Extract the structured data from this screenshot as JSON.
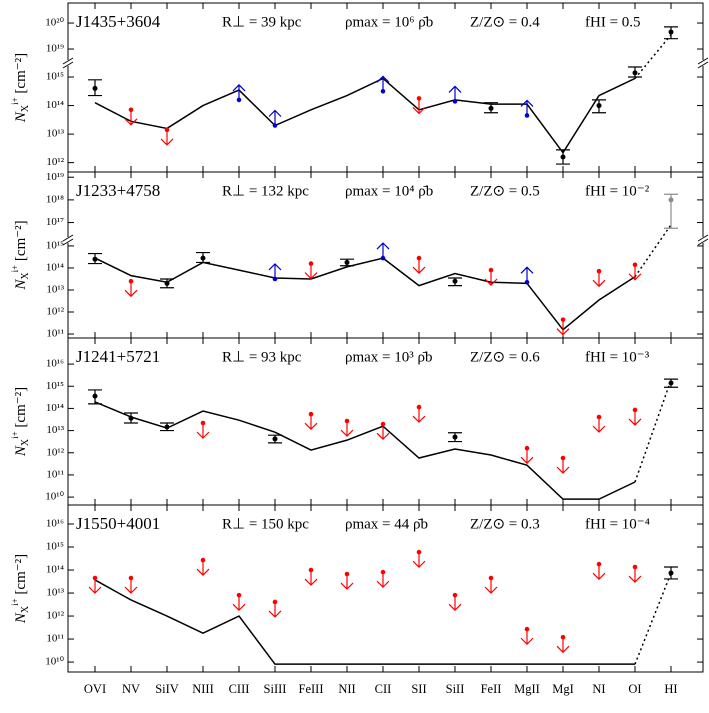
{
  "chart_data": [
    {
      "type": "line",
      "log_scale": true,
      "name": "J1435+3604",
      "r_perp": "R⊥ = 39 kpc",
      "rho": "ρmax = 10⁶ ρ̄b",
      "metallicity": "Z/Z⊙ = 0.4",
      "f_hi": "fHI = 0.5",
      "y_label": {
        "symbol": "N",
        "sub": "X",
        "sup": "i+",
        "unit": "[cm⁻²]"
      },
      "ylim": [
        470000000000.0,
        3100000000000000.0
      ],
      "yticks": [
        {
          "value": 1000000000000.0,
          "label": "10¹²"
        },
        {
          "value": 10000000000000.0,
          "label": "10¹³"
        },
        {
          "value": 100000000000000.0,
          "label": "10¹⁴"
        },
        {
          "value": 1000000000000000.0,
          "label": "10¹⁵"
        }
      ],
      "y2lim": [
        2.9e+18,
        5.9e+20
      ],
      "y2ticks": [
        {
          "value": 1e+19,
          "label": "10¹⁹"
        },
        {
          "value": 1e+20,
          "label": "10²⁰"
        }
      ],
      "hi_axis": "y2",
      "model_color": "#000000",
      "model_values": [
        126000000000000.0,
        28000000000000.0,
        15800000000000.0,
        100000000000000.0,
        350000000000000.0,
        20000000000000.0,
        71000000000000.0,
        224000000000000.0,
        890000000000000.0,
        71000000000000.0,
        158000000000000.0,
        112000000000000.0,
        112000000000000.0,
        2240000000000.0,
        224000000000000.0,
        890000000000000.0,
        3.5e+19
      ],
      "detection_color": "#000000",
      "detections": [
        400000000000000.0,
        null,
        null,
        null,
        null,
        null,
        null,
        null,
        null,
        null,
        null,
        80000000000000.0,
        null,
        1580000000000.0,
        100000000000000.0,
        1400000000000000.0,
        4.5e+19
      ],
      "detection_ranges": [
        [
          224000000000000.0,
          800000000000000.0
        ],
        null,
        null,
        null,
        null,
        null,
        null,
        null,
        null,
        null,
        null,
        [
          56000000000000.0,
          126000000000000.0
        ],
        null,
        [
          890000000000.0,
          2800000000000.0
        ],
        [
          56000000000000.0,
          158000000000000.0
        ],
        [
          1000000000000000.0,
          2240000000000000.0
        ],
        [
          2.5e+19,
          7.1e+19
        ]
      ],
      "upper_limit_color": "#ff0000",
      "upper_limits": [
        null,
        71000000000000.0,
        14000000000000.0,
        null,
        null,
        null,
        null,
        null,
        null,
        178000000000000.0,
        null,
        null,
        null,
        null,
        null,
        null,
        null
      ],
      "lower_limit_color": "#0000cc",
      "lower_limits": [
        null,
        null,
        null,
        null,
        158000000000000.0,
        20000000000000.0,
        null,
        null,
        316000000000000.0,
        null,
        140000000000000.0,
        null,
        45000000000000.0,
        null,
        null,
        null,
        null
      ]
    },
    {
      "type": "line",
      "log_scale": true,
      "name": "J1233+4758",
      "r_perp": "R⊥ = 132 kpc",
      "rho": "ρmax = 10⁴ ρ̄b",
      "metallicity": "Z/Z⊙ = 0.5",
      "f_hi": "fHI = 10⁻²",
      "y_label": {
        "symbol": "N",
        "sub": "X",
        "sup": "i+",
        "unit": "[cm⁻²]"
      },
      "ylim": [
        66000000000.0,
        1860000000000000.0
      ],
      "yticks": [
        {
          "value": 100000000000.0,
          "label": "10¹¹"
        },
        {
          "value": 1000000000000.0,
          "label": "10¹²"
        },
        {
          "value": 10000000000000.0,
          "label": "10¹³"
        },
        {
          "value": 100000000000000.0,
          "label": "10¹⁴"
        },
        {
          "value": 1000000000000000.0,
          "label": "10¹⁵"
        }
      ],
      "y2lim": [
        1.7e+16,
        1.7e+19
      ],
      "y2ticks": [
        {
          "value": 1e+17,
          "label": "10¹⁷"
        },
        {
          "value": 1e+18,
          "label": "10¹⁸"
        },
        {
          "value": 1e+19,
          "label": "10¹⁹"
        }
      ],
      "hi_axis": "y2",
      "model_color": "#000000",
      "model_values": [
        280000000000000.0,
        45000000000000.0,
        22400000000000.0,
        178000000000000.0,
        80000000000000.0,
        35000000000000.0,
        31600000000000.0,
        112000000000000.0,
        280000000000000.0,
        15800000000000.0,
        56000000000000.0,
        22400000000000.0,
        20000000000000.0,
        158000000000.0,
        3500000000000.0,
        40000000000000.0,
        8e+16
      ],
      "detection_color": "#000000",
      "hi_color": "#8c8c8c",
      "detections": [
        250000000000000.0,
        null,
        20000000000000.0,
        280000000000000.0,
        null,
        null,
        null,
        178000000000000.0,
        null,
        null,
        25000000000000.0,
        null,
        null,
        null,
        null,
        null,
        1e+18
      ],
      "detection_ranges": [
        [
          158000000000000.0,
          450000000000000.0
        ],
        null,
        [
          12600000000000.0,
          31600000000000.0
        ],
        [
          178000000000000.0,
          500000000000000.0
        ],
        null,
        null,
        null,
        [
          126000000000000.0,
          250000000000000.0
        ],
        null,
        null,
        [
          15800000000000.0,
          35000000000000.0
        ],
        null,
        null,
        null,
        null,
        null,
        [
          5.6e+16,
          1.78e+18
        ]
      ],
      "upper_limit_color": "#ff0000",
      "upper_limits": [
        null,
        25000000000000.0,
        null,
        null,
        null,
        null,
        158000000000000.0,
        null,
        null,
        280000000000000.0,
        null,
        80000000000000.0,
        null,
        450000000000.0,
        71000000000000.0,
        140000000000000.0,
        null
      ],
      "lower_limit_color": "#0000cc",
      "lower_limits": [
        null,
        null,
        null,
        null,
        null,
        31600000000000.0,
        null,
        null,
        280000000000000.0,
        null,
        null,
        null,
        22400000000000.0,
        null,
        null,
        null,
        null
      ]
    },
    {
      "type": "line",
      "log_scale": true,
      "name": "J1241+5721",
      "r_perp": "R⊥ = 93 kpc",
      "rho": "ρmax = 10³ ρ̄b",
      "metallicity": "Z/Z⊙ = 0.6",
      "f_hi": "fHI = 10⁻³",
      "y_label": {
        "symbol": "N",
        "sub": "X",
        "sup": "i+",
        "unit": "[cm⁻²]"
      },
      "ylim": [
        4400000000.0,
        1.5e+17
      ],
      "yticks": [
        {
          "value": 10000000000.0,
          "label": "10¹⁰"
        },
        {
          "value": 100000000000.0,
          "label": "10¹¹"
        },
        {
          "value": 1000000000000.0,
          "label": "10¹²"
        },
        {
          "value": 10000000000000.0,
          "label": "10¹³"
        },
        {
          "value": 100000000000000.0,
          "label": "10¹⁴"
        },
        {
          "value": 1000000000000000.0,
          "label": "10¹⁵"
        },
        {
          "value": 1e+16,
          "label": "10¹⁶"
        }
      ],
      "model_color": "#000000",
      "model_values": [
        195000000000000.0,
        41000000000000.0,
        12900000000000.0,
        76000000000000.0,
        29500000000000.0,
        8500000000000.0,
        1320000000000.0,
        3700000000000.0,
        15800000000000.0,
        580000000000.0,
        1480000000000.0,
        790000000000.0,
        275000000000.0,
        8100000000.0,
        8100000000.0,
        48000000000.0,
        1900000000000000.0
      ],
      "detection_color": "#000000",
      "detections": [
        360000000000000.0,
        36000000000000.0,
        14500000000000.0,
        null,
        null,
        4200000000000.0,
        null,
        null,
        null,
        null,
        5100000000000.0,
        null,
        null,
        null,
        null,
        null,
        1400000000000000.0
      ],
      "detection_ranges": [
        [
          160000000000000.0,
          680000000000000.0
        ],
        [
          22000000000000.0,
          62000000000000.0
        ],
        [
          10000000000000.0,
          22000000000000.0
        ],
        null,
        null,
        [
          2800000000000.0,
          6200000000000.0
        ],
        null,
        null,
        null,
        null,
        [
          3200000000000.0,
          8000000000000.0
        ],
        null,
        null,
        null,
        null,
        null,
        [
          900000000000000.0,
          2100000000000000.0
        ]
      ],
      "upper_limit_color": "#ff0000",
      "upper_limits": [
        null,
        null,
        null,
        22000000000000.0,
        null,
        null,
        55000000000000.0,
        27000000000000.0,
        19500000000000.0,
        115000000000000.0,
        null,
        null,
        1600000000000.0,
        580000000000.0,
        41000000000000.0,
        85000000000000.0,
        null
      ],
      "lower_limit_color": "#0000cc",
      "lower_limits": [
        null,
        null,
        null,
        null,
        null,
        null,
        null,
        null,
        null,
        null,
        null,
        null,
        null,
        null,
        null,
        null,
        null
      ]
    },
    {
      "type": "line",
      "log_scale": true,
      "name": "J1550+4001",
      "r_perp": "R⊥ = 150 kpc",
      "rho": "ρmax = 44 ρ̄b",
      "metallicity": "Z/Z⊙ = 0.3",
      "f_hi": "fHI = 10⁻⁴",
      "y_label": {
        "symbol": "N",
        "sub": "X",
        "sup": "i+",
        "unit": "[cm⁻²]"
      },
      "ylim": [
        3700000000.0,
        6.7e+16
      ],
      "yticks": [
        {
          "value": 10000000000.0,
          "label": "10¹⁰"
        },
        {
          "value": 100000000000.0,
          "label": "10¹¹"
        },
        {
          "value": 1000000000000.0,
          "label": "10¹²"
        },
        {
          "value": 10000000000000.0,
          "label": "10¹³"
        },
        {
          "value": 100000000000000.0,
          "label": "10¹⁴"
        },
        {
          "value": 1000000000000000.0,
          "label": "10¹⁵"
        },
        {
          "value": 1e+16,
          "label": "10¹⁶"
        }
      ],
      "categories": [
        "OVI",
        "NV",
        "SiIV",
        "NIII",
        "CIII",
        "SiIII",
        "FeIII",
        "NII",
        "CII",
        "SII",
        "SiII",
        "FeII",
        "MgII",
        "MgI",
        "NI",
        "OI",
        "HI"
      ],
      "model_color": "#000000",
      "model_values": [
        37000000000000.0,
        5000000000000.0,
        1000000000000.0,
        180000000000.0,
        1000000000000.0,
        8100000000.0,
        8100000000.0,
        8100000000.0,
        8100000000.0,
        8100000000.0,
        8100000000.0,
        8100000000.0,
        8100000000.0,
        8100000000.0,
        8100000000.0,
        8100000000.0,
        74000000000000.0
      ],
      "detection_color": "#000000",
      "detections": [
        null,
        null,
        null,
        null,
        null,
        null,
        null,
        null,
        null,
        null,
        null,
        null,
        null,
        null,
        null,
        null,
        74000000000000.0
      ],
      "detection_ranges": [
        null,
        null,
        null,
        null,
        null,
        null,
        null,
        null,
        null,
        null,
        null,
        null,
        null,
        null,
        null,
        null,
        [
          41000000000000.0,
          135000000000000.0
        ]
      ],
      "upper_limit_color": "#ff0000",
      "upper_limits": [
        45000000000000.0,
        45000000000000.0,
        null,
        270000000000000.0,
        8100000000000.0,
        4100000000000.0,
        100000000000000.0,
        67000000000000.0,
        81000000000000.0,
        600000000000000.0,
        8100000000000.0,
        45000000000000.0,
        270000000000.0,
        120000000000.0,
        180000000000000.0,
        135000000000000.0,
        null
      ],
      "lower_limit_color": "#0000cc",
      "lower_limits": [
        null,
        null,
        null,
        null,
        null,
        null,
        null,
        null,
        null,
        null,
        null,
        null,
        null,
        null,
        null,
        null,
        null
      ]
    }
  ]
}
